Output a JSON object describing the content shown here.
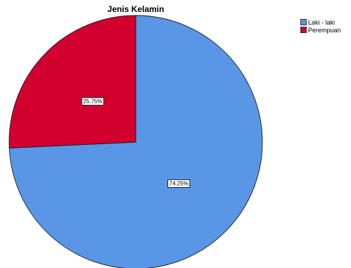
{
  "chart_data": {
    "type": "pie",
    "title": "Jenis Kelamin",
    "categories": [
      "Laki - laki",
      "Perempuan"
    ],
    "values": [
      74.25,
      25.75
    ],
    "labels": [
      "74.25%",
      "25.75%"
    ],
    "colors": [
      "#5A96E6",
      "#D1002E"
    ],
    "legend_position": "top-right",
    "start_angle": "12 o'clock",
    "direction": "clockwise"
  }
}
